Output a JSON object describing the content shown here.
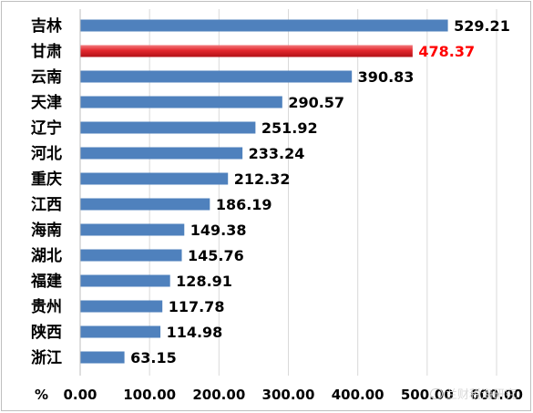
{
  "chart_data": {
    "type": "bar",
    "orientation": "horizontal",
    "categories": [
      "吉林",
      "甘肃",
      "云南",
      "天津",
      "辽宁",
      "河北",
      "重庆",
      "江西",
      "海南",
      "湖北",
      "福建",
      "贵州",
      "陕西",
      "浙江"
    ],
    "values": [
      529.21,
      478.37,
      390.83,
      290.57,
      251.92,
      233.24,
      212.32,
      186.19,
      149.38,
      145.76,
      128.91,
      117.78,
      114.98,
      63.15
    ],
    "value_labels": [
      "529.21",
      "478.37",
      "390.83",
      "290.57",
      "251.92",
      "233.24",
      "212.32",
      "186.19",
      "149.38",
      "145.76",
      "128.91",
      "117.78",
      "114.98",
      "63.15"
    ],
    "highlight_index": 1,
    "xlim": [
      0,
      600
    ],
    "x_ticks": [
      "0.00",
      "100.00",
      "200.00",
      "300.00",
      "400.00",
      "500.00",
      "600.00"
    ],
    "xlabel": "%",
    "grid": "vertical",
    "colors": {
      "bar": "#4f81bd",
      "highlight_bar": "#e3272d",
      "highlight_label": "#ff0000",
      "label": "#000000",
      "grid": "#d9d9d9"
    }
  },
  "watermark": "兰财税海研究"
}
